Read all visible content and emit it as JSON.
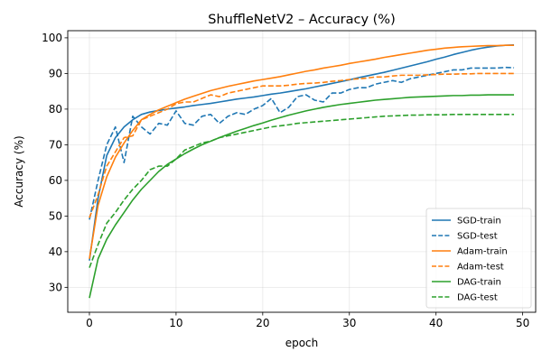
{
  "chart_data": {
    "type": "line",
    "title": "ShuffleNetV2 – Accuracy (%)",
    "xlabel": "epoch",
    "ylabel": "Accuracy (%)",
    "xlim": [
      -2.5,
      51.5
    ],
    "ylim": [
      23,
      102
    ],
    "xticks": [
      0,
      10,
      20,
      30,
      40,
      50
    ],
    "yticks": [
      30,
      40,
      50,
      60,
      70,
      80,
      90,
      100
    ],
    "grid": true,
    "legend_position": "lower-right",
    "x": [
      0,
      1,
      2,
      3,
      4,
      5,
      6,
      7,
      8,
      9,
      10,
      11,
      12,
      13,
      14,
      15,
      16,
      17,
      18,
      19,
      20,
      21,
      22,
      23,
      24,
      25,
      26,
      27,
      28,
      29,
      30,
      31,
      32,
      33,
      34,
      35,
      36,
      37,
      38,
      39,
      40,
      41,
      42,
      43,
      44,
      45,
      46,
      47,
      48,
      49
    ],
    "series": [
      {
        "name": "SGD-train",
        "color": "#1f77b4",
        "dash": "solid",
        "values": [
          37.5,
          55,
          67,
          72,
          75,
          77,
          78.5,
          79.2,
          79.6,
          80,
          80.3,
          80.6,
          81,
          81.3,
          81.6,
          82,
          82.4,
          82.8,
          83.1,
          83.4,
          83.8,
          84.2,
          84.5,
          84.9,
          85.3,
          85.7,
          86.2,
          86.7,
          87.2,
          87.7,
          88.2,
          88.8,
          89.3,
          89.8,
          90.3,
          90.9,
          91.5,
          92.1,
          92.7,
          93.3,
          94,
          94.6,
          95.3,
          95.9,
          96.5,
          97,
          97.4,
          97.7,
          97.9,
          98
        ]
      },
      {
        "name": "SGD-test",
        "color": "#1f77b4",
        "dash": "dashed",
        "values": [
          49,
          60,
          70,
          75,
          65,
          78,
          75,
          73,
          76,
          75.5,
          79.5,
          76,
          75.5,
          78,
          78.5,
          76,
          78,
          79,
          78.5,
          80,
          81,
          83,
          79,
          80.5,
          83.5,
          84,
          82.5,
          82,
          84.5,
          84.5,
          85.5,
          86,
          86,
          87,
          87.5,
          88,
          87.5,
          88.5,
          89,
          89.5,
          90,
          90.5,
          91,
          91,
          91.5,
          91.5,
          91.5,
          91.5,
          91.7,
          91.6
        ]
      },
      {
        "name": "Adam-train",
        "color": "#ff7f0e",
        "dash": "solid",
        "values": [
          38,
          53,
          61,
          66.5,
          70.5,
          74,
          77,
          78.5,
          79.8,
          80.8,
          81.8,
          82.8,
          83.6,
          84.4,
          85.2,
          85.8,
          86.4,
          86.9,
          87.4,
          87.9,
          88.3,
          88.7,
          89.1,
          89.6,
          90.1,
          90.6,
          91,
          91.5,
          91.9,
          92.3,
          92.8,
          93.2,
          93.6,
          94,
          94.5,
          94.9,
          95.3,
          95.7,
          96.1,
          96.5,
          96.8,
          97.1,
          97.3,
          97.5,
          97.6,
          97.7,
          97.8,
          97.8,
          97.9,
          97.9
        ]
      },
      {
        "name": "Adam-test",
        "color": "#ff7f0e",
        "dash": "dashed",
        "values": [
          49.5,
          56,
          64,
          68,
          72,
          72.5,
          77,
          78,
          79,
          80,
          81.5,
          82,
          82,
          83,
          84,
          83.5,
          84.5,
          85,
          85.5,
          86,
          86.5,
          86.5,
          86.5,
          86.7,
          87,
          87.2,
          87.3,
          87.5,
          87.8,
          88,
          88.3,
          88.5,
          88.7,
          89,
          89,
          89.3,
          89.5,
          89.5,
          89.5,
          89.6,
          89.7,
          89.8,
          89.8,
          89.9,
          89.9,
          90,
          90,
          90,
          90,
          90
        ]
      },
      {
        "name": "DAG-train",
        "color": "#2ca02c",
        "dash": "solid",
        "values": [
          27,
          38,
          43.5,
          47.5,
          51,
          54.5,
          57.5,
          60,
          62.5,
          64.5,
          66,
          67.5,
          68.8,
          70,
          71,
          72,
          72.9,
          73.8,
          74.6,
          75.4,
          76.1,
          76.9,
          77.6,
          78.3,
          78.9,
          79.5,
          80,
          80.5,
          80.9,
          81.3,
          81.6,
          81.9,
          82.2,
          82.5,
          82.7,
          82.9,
          83.1,
          83.3,
          83.4,
          83.5,
          83.6,
          83.7,
          83.8,
          83.8,
          83.9,
          83.9,
          84,
          84,
          84,
          84
        ]
      },
      {
        "name": "DAG-test",
        "color": "#2ca02c",
        "dash": "dashed",
        "values": [
          35.5,
          42,
          48,
          51,
          54.5,
          57.5,
          60,
          63,
          64,
          64,
          66,
          68.5,
          69.5,
          70.5,
          71,
          72,
          72.5,
          73,
          73.5,
          74,
          74.5,
          75,
          75.3,
          75.6,
          76,
          76.2,
          76.4,
          76.6,
          76.8,
          77,
          77.2,
          77.4,
          77.6,
          77.8,
          78,
          78.1,
          78.2,
          78.3,
          78.3,
          78.4,
          78.4,
          78.4,
          78.5,
          78.5,
          78.5,
          78.5,
          78.5,
          78.5,
          78.5,
          78.5
        ]
      }
    ]
  }
}
